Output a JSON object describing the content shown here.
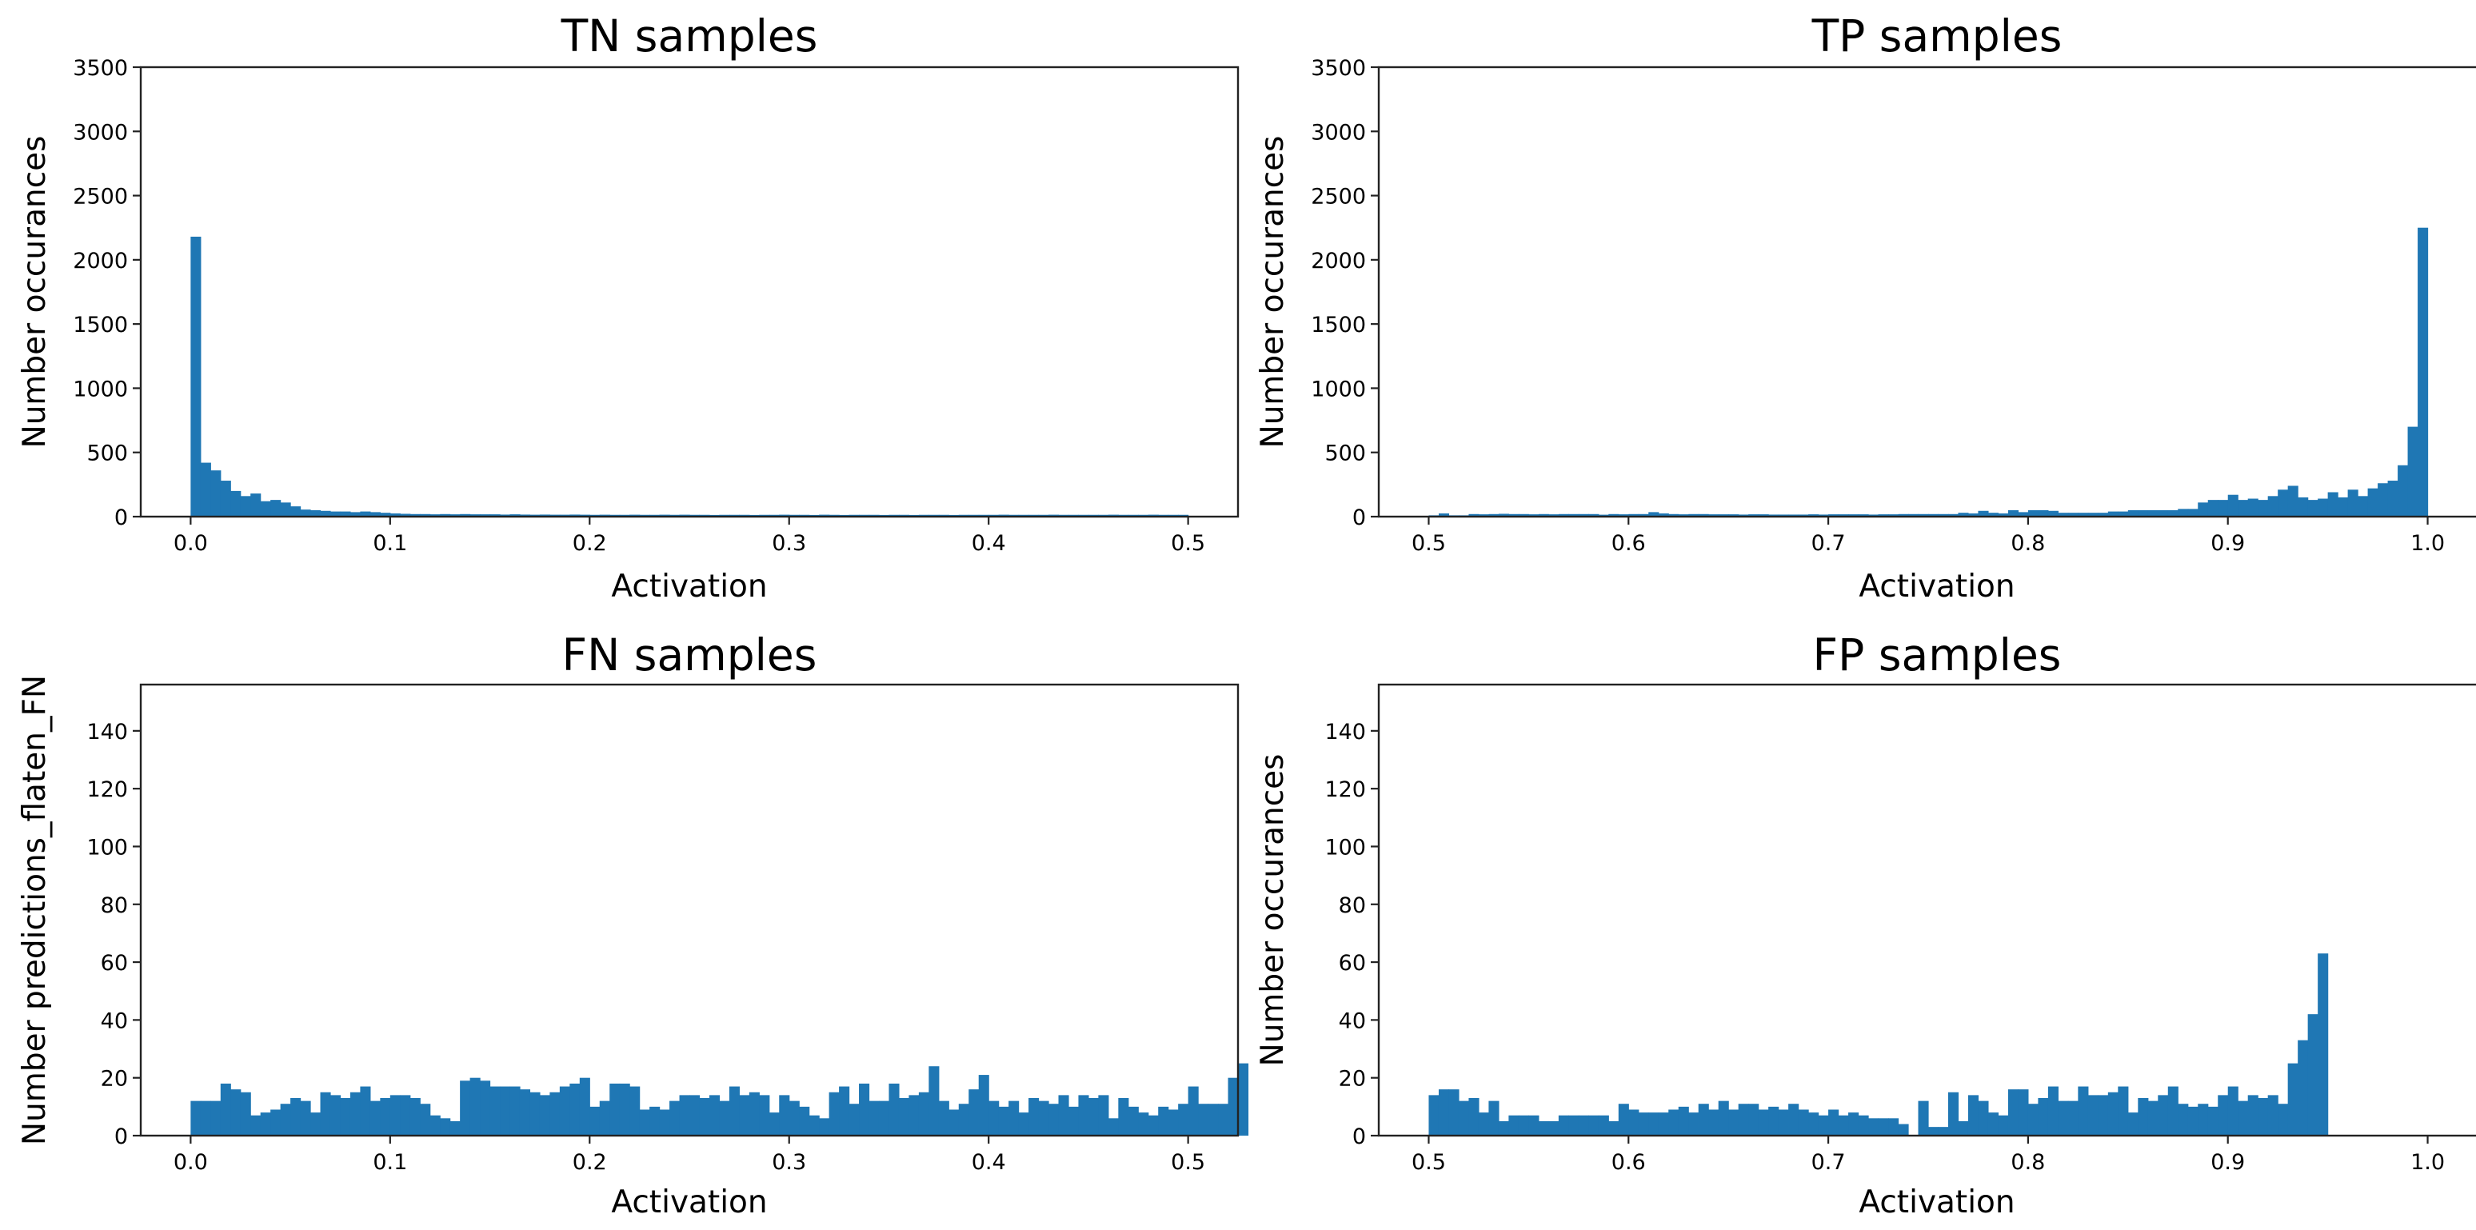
{
  "chart_data": [
    {
      "type": "bar",
      "title": "TN samples",
      "xlabel": "Activation",
      "ylabel": "Number occurances",
      "xlim": [
        -0.025,
        0.525
      ],
      "ylim": [
        0,
        3500
      ],
      "xticks": [
        "0.0",
        "0.1",
        "0.2",
        "0.3",
        "0.4",
        "0.5"
      ],
      "yticks": [
        "0",
        "500",
        "1000",
        "1500",
        "2000",
        "2500",
        "3000",
        "3500"
      ],
      "bin_start": 0.0,
      "bin_width": 0.005,
      "values": [
        2180,
        420,
        360,
        280,
        200,
        160,
        180,
        120,
        130,
        110,
        80,
        55,
        50,
        45,
        40,
        40,
        35,
        40,
        35,
        30,
        25,
        22,
        20,
        20,
        18,
        20,
        18,
        20,
        18,
        18,
        18,
        16,
        18,
        16,
        15,
        16,
        15,
        15,
        16,
        15,
        14,
        15,
        14,
        14,
        15,
        14,
        14,
        15,
        14,
        15,
        14,
        14,
        13,
        14,
        14,
        14,
        13,
        14,
        14,
        15,
        14,
        14,
        13,
        15,
        14,
        13,
        14,
        14,
        14,
        13,
        14,
        14,
        13,
        14,
        14,
        14,
        13,
        14,
        14,
        14,
        14,
        15,
        14,
        14,
        14,
        14,
        15,
        14,
        14,
        14,
        14,
        14,
        15,
        14,
        14,
        14,
        15,
        14,
        14,
        14
      ]
    },
    {
      "type": "bar",
      "title": "TP samples",
      "xlabel": "Activation",
      "ylabel": "Number occurances",
      "xlim": [
        0.475,
        1.025
      ],
      "ylim": [
        0,
        3500
      ],
      "xticks": [
        "0.5",
        "0.6",
        "0.7",
        "0.8",
        "0.9",
        "1.0"
      ],
      "yticks": [
        "0",
        "500",
        "1000",
        "1500",
        "2000",
        "2500",
        "3000",
        "3500"
      ],
      "bin_start": 0.5,
      "bin_width": 0.005,
      "values": [
        10,
        25,
        10,
        10,
        20,
        18,
        20,
        22,
        20,
        20,
        18,
        20,
        18,
        20,
        20,
        20,
        20,
        15,
        20,
        18,
        20,
        20,
        35,
        25,
        20,
        18,
        20,
        20,
        18,
        18,
        18,
        16,
        18,
        18,
        16,
        16,
        16,
        16,
        18,
        16,
        18,
        18,
        18,
        18,
        16,
        18,
        18,
        20,
        20,
        20,
        20,
        20,
        20,
        30,
        25,
        45,
        30,
        25,
        50,
        35,
        50,
        50,
        45,
        30,
        30,
        30,
        30,
        30,
        40,
        40,
        50,
        50,
        50,
        50,
        50,
        60,
        60,
        110,
        130,
        130,
        170,
        130,
        140,
        130,
        160,
        210,
        240,
        150,
        130,
        140,
        190,
        150,
        210,
        160,
        220,
        260,
        280,
        400,
        700,
        2250
      ]
    },
    {
      "type": "bar",
      "title": "FN samples",
      "xlabel": "Activation",
      "ylabel": "Number predictions_flaten_FN",
      "xlim": [
        -0.025,
        0.525
      ],
      "ylim": [
        0,
        156
      ],
      "xticks": [
        "0.0",
        "0.1",
        "0.2",
        "0.3",
        "0.4",
        "0.5"
      ],
      "yticks": [
        "0",
        "20",
        "40",
        "60",
        "80",
        "100",
        "120",
        "140"
      ],
      "bin_start": 0.0,
      "bin_width": 0.005,
      "values": [
        12,
        12,
        12,
        18,
        16,
        15,
        7,
        8,
        9,
        11,
        13,
        12,
        8,
        15,
        14,
        13,
        15,
        17,
        12,
        13,
        14,
        14,
        13,
        11,
        7,
        6,
        5,
        19,
        20,
        19,
        17,
        17,
        17,
        16,
        15,
        14,
        15,
        17,
        18,
        20,
        10,
        12,
        18,
        18,
        17,
        9,
        10,
        9,
        12,
        14,
        14,
        13,
        14,
        12,
        17,
        14,
        15,
        14,
        8,
        14,
        12,
        10,
        7,
        6,
        15,
        17,
        11,
        18,
        12,
        12,
        18,
        13,
        14,
        15,
        24,
        12,
        9,
        11,
        16,
        21,
        12,
        10,
        12,
        8,
        13,
        12,
        11,
        14,
        10,
        14,
        13,
        14,
        6,
        13,
        10,
        8,
        7,
        10,
        9,
        11,
        17,
        11,
        11,
        11,
        20,
        25
      ]
    },
    {
      "type": "bar",
      "title": "FP samples",
      "xlabel": "Activation",
      "ylabel": "Number occurances",
      "xlim": [
        0.475,
        1.025
      ],
      "ylim": [
        0,
        156
      ],
      "xticks": [
        "0.5",
        "0.6",
        "0.7",
        "0.8",
        "0.9",
        "1.0"
      ],
      "yticks": [
        "0",
        "20",
        "40",
        "60",
        "80",
        "100",
        "120",
        "140"
      ],
      "bin_start": 0.5,
      "bin_width": 0.005,
      "values": [
        14,
        16,
        16,
        12,
        13,
        8,
        12,
        5,
        7,
        7,
        7,
        5,
        5,
        7,
        7,
        7,
        7,
        7,
        5,
        11,
        9,
        8,
        8,
        8,
        9,
        10,
        8,
        11,
        9,
        12,
        9,
        11,
        11,
        9,
        10,
        9,
        11,
        9,
        8,
        7,
        9,
        7,
        8,
        7,
        6,
        6,
        6,
        4,
        0,
        12,
        3,
        3,
        15,
        5,
        14,
        12,
        8,
        7,
        16,
        16,
        11,
        13,
        17,
        12,
        12,
        17,
        14,
        14,
        15,
        17,
        8,
        13,
        12,
        14,
        17,
        11,
        10,
        11,
        10,
        14,
        17,
        12,
        14,
        13,
        14,
        11,
        25,
        33,
        42,
        63
      ]
    }
  ]
}
